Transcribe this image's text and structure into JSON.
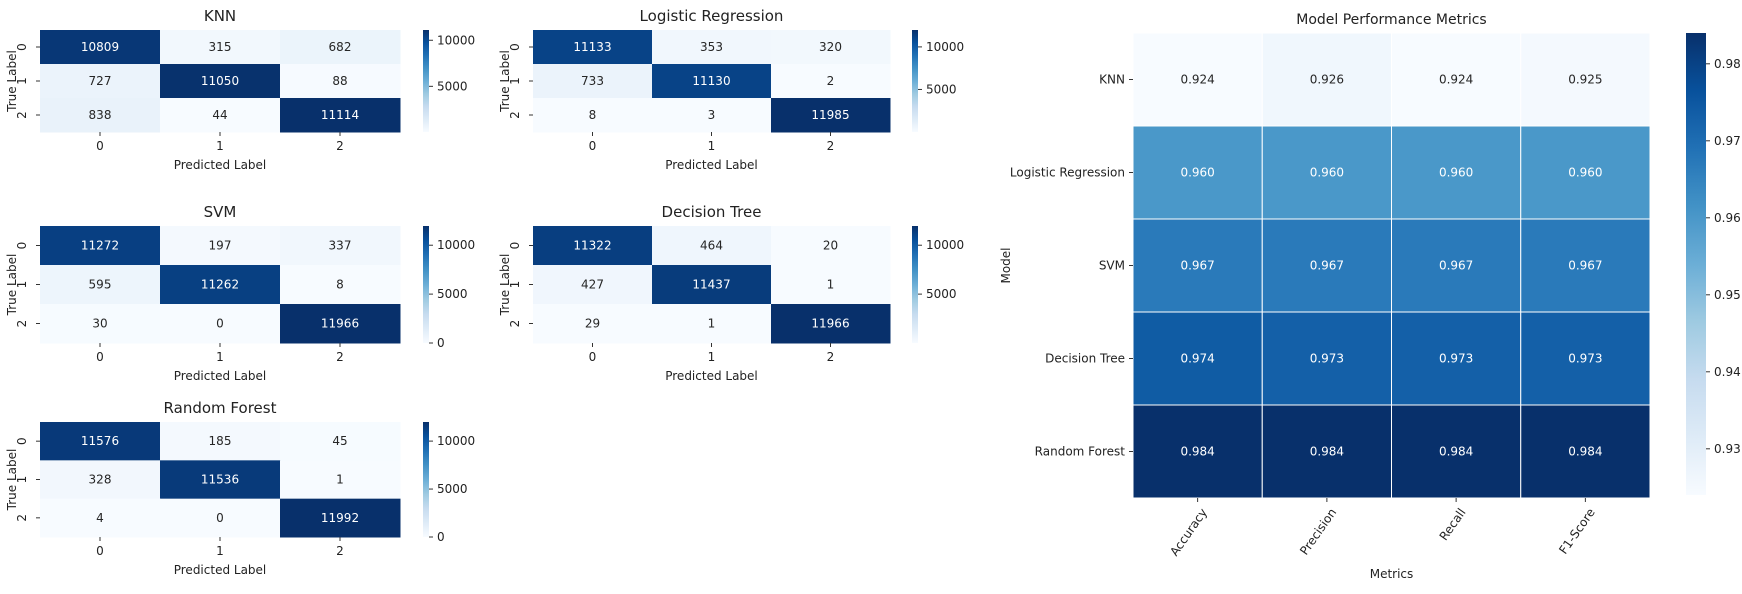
{
  "chart_data": [
    {
      "type": "heatmap",
      "title": "KNN",
      "xlabel": "Predicted Label",
      "ylabel": "True Label",
      "x_ticks": [
        "0",
        "1",
        "2"
      ],
      "y_ticks": [
        "0",
        "1",
        "2"
      ],
      "values": [
        [
          10809,
          315,
          682
        ],
        [
          727,
          11050,
          88
        ],
        [
          838,
          44,
          11114
        ]
      ],
      "colorbar": {
        "vmin": 44,
        "vmax": 11114,
        "ticks": [
          5000,
          10000
        ]
      }
    },
    {
      "type": "heatmap",
      "title": "Logistic Regression",
      "xlabel": "Predicted Label",
      "ylabel": "True Label",
      "x_ticks": [
        "0",
        "1",
        "2"
      ],
      "y_ticks": [
        "0",
        "1",
        "2"
      ],
      "values": [
        [
          11133,
          353,
          320
        ],
        [
          733,
          11130,
          2
        ],
        [
          8,
          3,
          11985
        ]
      ],
      "colorbar": {
        "vmin": 2,
        "vmax": 11985,
        "ticks": [
          5000,
          10000
        ]
      }
    },
    {
      "type": "heatmap",
      "title": "SVM",
      "xlabel": "Predicted Label",
      "ylabel": "True Label",
      "x_ticks": [
        "0",
        "1",
        "2"
      ],
      "y_ticks": [
        "0",
        "1",
        "2"
      ],
      "values": [
        [
          11272,
          197,
          337
        ],
        [
          595,
          11262,
          8
        ],
        [
          30,
          0,
          11966
        ]
      ],
      "colorbar": {
        "vmin": 0,
        "vmax": 11966,
        "ticks": [
          0,
          5000,
          10000
        ]
      }
    },
    {
      "type": "heatmap",
      "title": "Decision Tree",
      "xlabel": "Predicted Label",
      "ylabel": "True Label",
      "x_ticks": [
        "0",
        "1",
        "2"
      ],
      "y_ticks": [
        "0",
        "1",
        "2"
      ],
      "values": [
        [
          11322,
          464,
          20
        ],
        [
          427,
          11437,
          1
        ],
        [
          29,
          1,
          11966
        ]
      ],
      "colorbar": {
        "vmin": 1,
        "vmax": 11966,
        "ticks": [
          5000,
          10000
        ]
      }
    },
    {
      "type": "heatmap",
      "title": "Random Forest",
      "xlabel": "Predicted Label",
      "ylabel": "True Label",
      "x_ticks": [
        "0",
        "1",
        "2"
      ],
      "y_ticks": [
        "0",
        "1",
        "2"
      ],
      "values": [
        [
          11576,
          185,
          45
        ],
        [
          328,
          11536,
          1
        ],
        [
          4,
          0,
          11992
        ]
      ],
      "colorbar": {
        "vmin": 0,
        "vmax": 11992,
        "ticks": [
          0,
          5000,
          10000
        ]
      }
    },
    {
      "type": "heatmap",
      "title": "Model Performance Metrics",
      "xlabel": "Metrics",
      "ylabel": "Model",
      "x_ticks": [
        "Accuracy",
        "Precision",
        "Recall",
        "F1-Score"
      ],
      "y_ticks": [
        "KNN",
        "Logistic Regression",
        "SVM",
        "Decision Tree",
        "Random Forest"
      ],
      "values": [
        [
          0.924,
          0.926,
          0.924,
          0.925
        ],
        [
          0.96,
          0.96,
          0.96,
          0.96
        ],
        [
          0.967,
          0.967,
          0.967,
          0.967
        ],
        [
          0.974,
          0.973,
          0.973,
          0.973
        ],
        [
          0.984,
          0.984,
          0.984,
          0.984
        ]
      ],
      "value_format": "0.000",
      "colorbar": {
        "vmin": 0.924,
        "vmax": 0.984,
        "ticks": [
          0.93,
          0.94,
          0.95,
          0.96,
          0.97,
          0.98
        ]
      }
    }
  ],
  "colormap": "Blues"
}
